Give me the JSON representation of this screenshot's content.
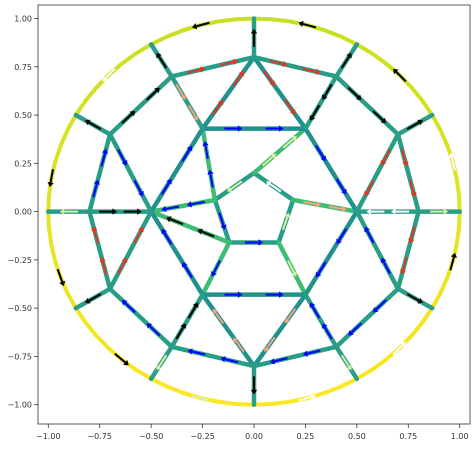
{
  "figure": {
    "type": "graph-on-axes",
    "xlim": [
      -1.05,
      1.05
    ],
    "ylim": [
      -1.1,
      1.07
    ],
    "xticks": [
      {
        "v": -1.0,
        "label": "−1.00"
      },
      {
        "v": -0.75,
        "label": "−0.75"
      },
      {
        "v": -0.5,
        "label": "−0.50"
      },
      {
        "v": -0.25,
        "label": "−0.25"
      },
      {
        "v": 0.0,
        "label": "0.00"
      },
      {
        "v": 0.25,
        "label": "0.25"
      },
      {
        "v": 0.5,
        "label": "0.50"
      },
      {
        "v": 0.75,
        "label": "0.75"
      },
      {
        "v": 1.0,
        "label": "1.00"
      }
    ],
    "yticks": [
      {
        "v": 1.0,
        "label": "1.00"
      },
      {
        "v": 0.75,
        "label": "0.75"
      },
      {
        "v": 0.5,
        "label": "0.50"
      },
      {
        "v": 0.25,
        "label": "0.25"
      },
      {
        "v": 0.0,
        "label": "0.00"
      },
      {
        "v": -0.25,
        "label": "−0.25"
      },
      {
        "v": -0.5,
        "label": "−0.50"
      },
      {
        "v": -0.75,
        "label": "−0.75"
      },
      {
        "v": -1.0,
        "label": "−1.00"
      }
    ],
    "outer_circle": {
      "radius": 1.0,
      "colors": [
        "#c7e020",
        "#fde725"
      ]
    },
    "edge_colors": [
      "#21918c",
      "#2a9d87",
      "#3fbc73",
      "#5ec962"
    ],
    "arrow_colors": [
      "#000000",
      "#0000ff",
      "#e8341c",
      "#f4a582",
      "#d9f0a3",
      "#ffffff"
    ],
    "nodes": [
      {
        "id": "c0",
        "x": 0.0,
        "y": 0.2
      },
      {
        "id": "c1",
        "x": -0.19,
        "y": 0.06
      },
      {
        "id": "c2",
        "x": -0.12,
        "y": -0.16
      },
      {
        "id": "c3",
        "x": 0.12,
        "y": -0.16
      },
      {
        "id": "c4",
        "x": 0.19,
        "y": 0.06
      },
      {
        "id": "h0",
        "x": 0.0,
        "y": 0.8
      },
      {
        "id": "h1",
        "x": 0.25,
        "y": 0.43
      },
      {
        "id": "h2",
        "x": 0.5,
        "y": 0.0
      },
      {
        "id": "h3",
        "x": 0.25,
        "y": -0.43
      },
      {
        "id": "h4",
        "x": 0.0,
        "y": -0.8
      },
      {
        "id": "h5",
        "x": -0.25,
        "y": -0.43
      },
      {
        "id": "h6",
        "x": -0.5,
        "y": 0.0
      },
      {
        "id": "h7",
        "x": -0.25,
        "y": 0.43
      },
      {
        "id": "r0",
        "x": 0.4,
        "y": 0.7
      },
      {
        "id": "r1",
        "x": 0.7,
        "y": 0.4
      },
      {
        "id": "r2",
        "x": 0.8,
        "y": 0.0
      },
      {
        "id": "r3",
        "x": 0.7,
        "y": -0.4
      },
      {
        "id": "r4",
        "x": 0.4,
        "y": -0.7
      },
      {
        "id": "r5",
        "x": -0.4,
        "y": -0.7
      },
      {
        "id": "r6",
        "x": -0.7,
        "y": -0.4
      },
      {
        "id": "r7",
        "x": -0.8,
        "y": 0.0
      },
      {
        "id": "r8",
        "x": -0.7,
        "y": 0.4
      },
      {
        "id": "r9",
        "x": -0.4,
        "y": 0.7
      }
    ],
    "edges": [
      {
        "a": "c0",
        "b": "c1",
        "c": 1,
        "arrow": 4
      },
      {
        "a": "c1",
        "b": "c2",
        "c": 1,
        "arrow": 1
      },
      {
        "a": "c2",
        "b": "c3",
        "c": 1,
        "arrow": 1
      },
      {
        "a": "c3",
        "b": "c4",
        "c": 1,
        "arrow": 4
      },
      {
        "a": "c4",
        "b": "c0",
        "c": 1,
        "arrow": 5
      },
      {
        "a": "c0",
        "b": "h1",
        "c": 2,
        "arrow": 4
      },
      {
        "a": "c1",
        "b": "h7",
        "c": 2,
        "arrow": 1
      },
      {
        "a": "c1",
        "b": "h6",
        "c": 2,
        "arrow": 1
      },
      {
        "a": "c2",
        "b": "h5",
        "c": 2,
        "arrow": 1
      },
      {
        "a": "c2",
        "b": "h6",
        "c": 2,
        "arrow": 0
      },
      {
        "a": "c3",
        "b": "h3",
        "c": 2,
        "arrow": 4
      },
      {
        "a": "c4",
        "b": "h2",
        "c": 2,
        "arrow": 3
      },
      {
        "a": "h7",
        "b": "h1",
        "c": 0,
        "arrow": 1
      },
      {
        "a": "h5",
        "b": "h3",
        "c": 0,
        "arrow": 1
      },
      {
        "a": "h0",
        "b": "h1",
        "c": 0,
        "arrow": 2
      },
      {
        "a": "h1",
        "b": "h2",
        "c": 0,
        "arrow": 1
      },
      {
        "a": "h2",
        "b": "h3",
        "c": 0,
        "arrow": 1
      },
      {
        "a": "h3",
        "b": "h4",
        "c": 0,
        "arrow": 3
      },
      {
        "a": "h4",
        "b": "h5",
        "c": 0,
        "arrow": 3
      },
      {
        "a": "h5",
        "b": "h6",
        "c": 0,
        "arrow": 1
      },
      {
        "a": "h6",
        "b": "h7",
        "c": 0,
        "arrow": 1
      },
      {
        "a": "h7",
        "b": "h0",
        "c": 0,
        "arrow": 2
      },
      {
        "a": "h0",
        "b": "r0",
        "c": 1,
        "arrow": 2
      },
      {
        "a": "r0",
        "b": "h1",
        "c": 1,
        "arrow": 0
      },
      {
        "a": "r0",
        "b": "r1",
        "c": 1,
        "arrow": 0
      },
      {
        "a": "r1",
        "b": "h2",
        "c": 1,
        "arrow": 2
      },
      {
        "a": "r1",
        "b": "r2",
        "c": 1,
        "arrow": 2
      },
      {
        "a": "r2",
        "b": "h2",
        "c": 1,
        "arrow": 5
      },
      {
        "a": "r2",
        "b": "r3",
        "c": 1,
        "arrow": 2
      },
      {
        "a": "r3",
        "b": "h2",
        "c": 1,
        "arrow": 1
      },
      {
        "a": "r3",
        "b": "r4",
        "c": 1,
        "arrow": 1
      },
      {
        "a": "r4",
        "b": "h3",
        "c": 1,
        "arrow": 1
      },
      {
        "a": "r4",
        "b": "h4",
        "c": 1,
        "arrow": 1
      },
      {
        "a": "h4",
        "b": "r5",
        "c": 1,
        "arrow": 1
      },
      {
        "a": "r5",
        "b": "h5",
        "c": 1,
        "arrow": 0
      },
      {
        "a": "r5",
        "b": "r6",
        "c": 1,
        "arrow": 1
      },
      {
        "a": "r6",
        "b": "h6",
        "c": 1,
        "arrow": 2
      },
      {
        "a": "r6",
        "b": "r7",
        "c": 1,
        "arrow": 2
      },
      {
        "a": "r7",
        "b": "h6",
        "c": 1,
        "arrow": 0
      },
      {
        "a": "r7",
        "b": "r8",
        "c": 1,
        "arrow": 1
      },
      {
        "a": "r8",
        "b": "h6",
        "c": 1,
        "arrow": 1
      },
      {
        "a": "r8",
        "b": "r9",
        "c": 1,
        "arrow": 0
      },
      {
        "a": "r9",
        "b": "h7",
        "c": 1,
        "arrow": 3
      },
      {
        "a": "r9",
        "b": "h0",
        "c": 1,
        "arrow": 2
      },
      {
        "a": "h0",
        "b": "O90",
        "c": 1,
        "arrow": 0
      },
      {
        "a": "r0",
        "b": "O60",
        "c": 1,
        "arrow": 0
      },
      {
        "a": "r1",
        "b": "O30",
        "c": 1,
        "arrow": 0
      },
      {
        "a": "r2",
        "b": "O0",
        "c": 1,
        "arrow": 4
      },
      {
        "a": "r3",
        "b": "O-30",
        "c": 1,
        "arrow": 0
      },
      {
        "a": "r4",
        "b": "O-60",
        "c": 1,
        "arrow": 4
      },
      {
        "a": "h4",
        "b": "O-90",
        "c": 1,
        "arrow": 0
      },
      {
        "a": "r5",
        "b": "O-120",
        "c": 1,
        "arrow": 4
      },
      {
        "a": "r6",
        "b": "O-150",
        "c": 1,
        "arrow": 0
      },
      {
        "a": "r7",
        "b": "O180",
        "c": 1,
        "arrow": 4
      },
      {
        "a": "r8",
        "b": "O150",
        "c": 1,
        "arrow": 0
      },
      {
        "a": "r9",
        "b": "O120",
        "c": 1,
        "arrow": 0
      }
    ],
    "rim_arrows": [
      {
        "angle": 105,
        "color": 0
      },
      {
        "angle": 135,
        "color": 5
      },
      {
        "angle": 170,
        "color": 0
      },
      {
        "angle": 200,
        "color": 0
      },
      {
        "angle": 230,
        "color": 0
      },
      {
        "angle": 255,
        "color": 4
      },
      {
        "angle": 285,
        "color": 5
      },
      {
        "angle": 315,
        "color": 5
      },
      {
        "angle": 345,
        "color": 0
      },
      {
        "angle": 15,
        "color": 5
      },
      {
        "angle": 45,
        "color": 0
      },
      {
        "angle": 75,
        "color": 0
      }
    ]
  }
}
